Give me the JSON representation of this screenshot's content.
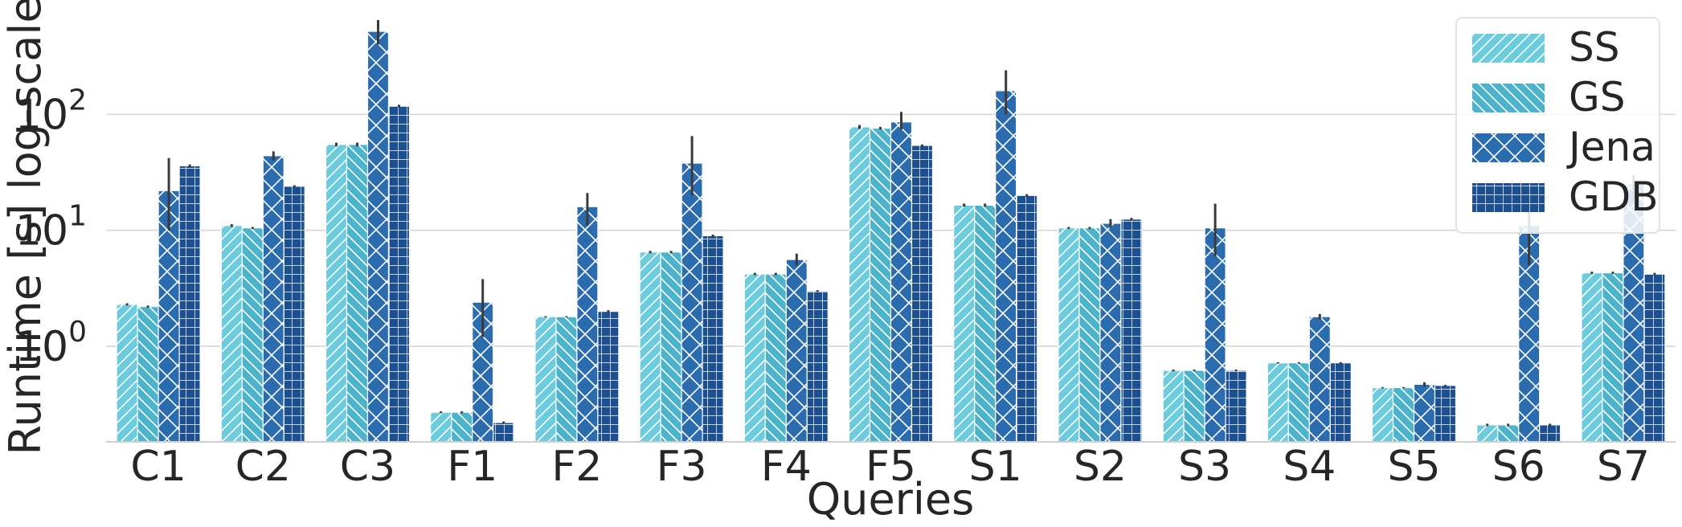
{
  "chart_data": {
    "type": "bar",
    "xlabel": "Queries",
    "ylabel": "Runtime [s] log-scale",
    "yscale": "log",
    "ylim": [
      0.15,
      800
    ],
    "grid": "horizontal",
    "legend_position": "top-right",
    "yticks": [
      {
        "value": 1,
        "base": "10",
        "exp": "0"
      },
      {
        "value": 10,
        "base": "10",
        "exp": "1"
      },
      {
        "value": 100,
        "base": "10",
        "exp": "2"
      }
    ],
    "categories": [
      "C1",
      "C2",
      "C3",
      "F1",
      "F2",
      "F3",
      "F4",
      "F5",
      "S1",
      "S2",
      "S3",
      "S4",
      "S5",
      "S6",
      "S7"
    ],
    "series": [
      {
        "name": "SS",
        "color": "#6ccbdc",
        "pattern": "diagonal-forward",
        "values": [
          2.3,
          11,
          55,
          0.27,
          1.8,
          6.5,
          4.2,
          78,
          16.5,
          10.5,
          0.62,
          0.72,
          0.44,
          0.21,
          4.3
        ],
        "errors": [
          [
            2.25,
            2.35
          ],
          [
            10.7,
            11.3
          ],
          [
            53,
            57
          ],
          [
            0.265,
            0.275
          ],
          [
            1.78,
            1.82
          ],
          [
            6.35,
            6.65
          ],
          [
            4.1,
            4.3
          ],
          [
            75,
            81
          ],
          [
            16,
            17
          ],
          [
            10.3,
            10.7
          ],
          [
            0.61,
            0.63
          ],
          [
            0.71,
            0.73
          ],
          [
            0.435,
            0.445
          ],
          [
            0.205,
            0.215
          ],
          [
            4.2,
            4.4
          ]
        ]
      },
      {
        "name": "GS",
        "color": "#4bb3cb",
        "pattern": "diagonal-backward",
        "values": [
          2.2,
          10.5,
          55,
          0.27,
          1.8,
          6.5,
          4.2,
          76,
          16.5,
          10.5,
          0.62,
          0.72,
          0.44,
          0.21,
          4.3
        ],
        "errors": [
          [
            2.15,
            2.25
          ],
          [
            10.3,
            10.7
          ],
          [
            53,
            57
          ],
          [
            0.265,
            0.275
          ],
          [
            1.78,
            1.82
          ],
          [
            6.35,
            6.65
          ],
          [
            4.1,
            4.3
          ],
          [
            74,
            78
          ],
          [
            16,
            17
          ],
          [
            10.3,
            10.7
          ],
          [
            0.61,
            0.63
          ],
          [
            0.71,
            0.73
          ],
          [
            0.435,
            0.445
          ],
          [
            0.205,
            0.215
          ],
          [
            4.2,
            4.4
          ]
        ]
      },
      {
        "name": "Jena",
        "color": "#2b6cae",
        "pattern": "crosshatch",
        "values": [
          22,
          44,
          520,
          2.4,
          16,
          38,
          5.6,
          86,
          160,
          11.5,
          10.5,
          1.8,
          0.47,
          11,
          25
        ],
        "errors": [
          [
            10,
            42
          ],
          [
            40,
            48
          ],
          [
            400,
            650
          ],
          [
            1.2,
            3.8
          ],
          [
            11,
            21
          ],
          [
            20,
            65
          ],
          [
            5,
            6.3
          ],
          [
            74,
            105
          ],
          [
            100,
            240
          ],
          [
            10.5,
            12.5
          ],
          [
            6,
            17
          ],
          [
            1.7,
            1.9
          ],
          [
            0.45,
            0.49
          ],
          [
            5,
            18
          ],
          [
            18,
            30
          ]
        ]
      },
      {
        "name": "GDB",
        "color": "#1c4f8f",
        "pattern": "grid",
        "values": [
          36,
          24,
          118,
          0.22,
          2.0,
          9.0,
          3.0,
          54,
          20,
          12.5,
          0.62,
          0.72,
          0.46,
          0.21,
          4.2
        ],
        "errors": [
          [
            35,
            37
          ],
          [
            23.5,
            24.5
          ],
          [
            115,
            121
          ],
          [
            0.215,
            0.225
          ],
          [
            1.95,
            2.05
          ],
          [
            8.8,
            9.2
          ],
          [
            2.95,
            3.05
          ],
          [
            53,
            55
          ],
          [
            19.5,
            20.5
          ],
          [
            12.2,
            12.8
          ],
          [
            0.61,
            0.63
          ],
          [
            0.71,
            0.73
          ],
          [
            0.455,
            0.465
          ],
          [
            0.205,
            0.215
          ],
          [
            4.1,
            4.3
          ]
        ]
      }
    ]
  }
}
